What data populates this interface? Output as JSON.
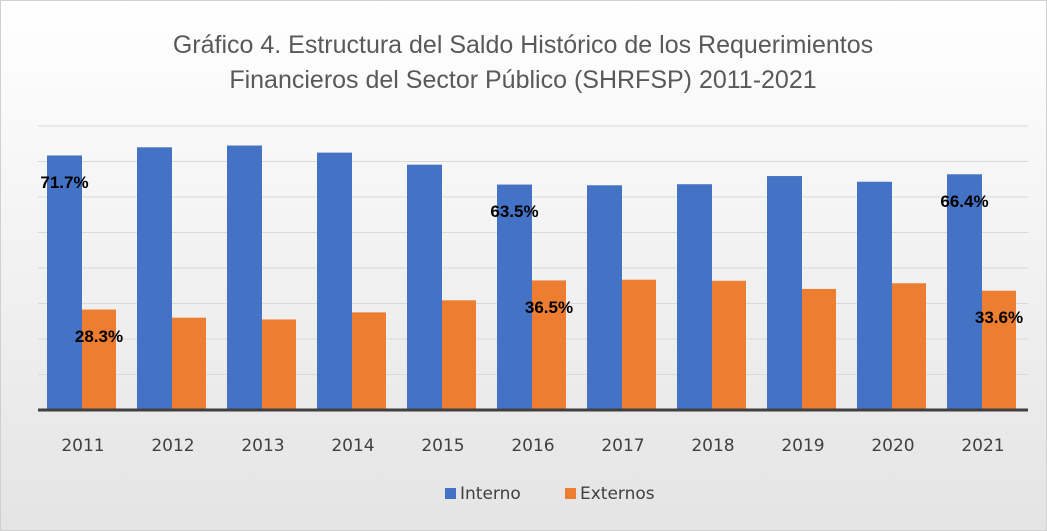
{
  "chart_data": {
    "type": "bar",
    "title": "Gráfico 4. Estructura del Saldo Histórico de los Requerimientos Financieros del Sector Público (SHRFSP) 2011-2021",
    "categories": [
      "2011",
      "2012",
      "2013",
      "2014",
      "2015",
      "2016",
      "2017",
      "2018",
      "2019",
      "2020",
      "2021"
    ],
    "series": [
      {
        "name": "Interno",
        "color": "#4472c4",
        "values": [
          71.7,
          74.0,
          74.5,
          72.5,
          69.1,
          63.5,
          63.3,
          63.6,
          65.9,
          64.3,
          66.4
        ],
        "value_labels": [
          "71.7%",
          null,
          null,
          null,
          null,
          "63.5%",
          null,
          null,
          null,
          null,
          "66.4%"
        ]
      },
      {
        "name": "Externos",
        "color": "#ed7d31",
        "values": [
          28.3,
          26.0,
          25.5,
          27.5,
          30.9,
          36.5,
          36.7,
          36.4,
          34.1,
          35.7,
          33.6
        ],
        "value_labels": [
          "28.3%",
          null,
          null,
          null,
          null,
          "36.5%",
          null,
          null,
          null,
          null,
          "33.6%"
        ]
      }
    ],
    "ylim": [
      0,
      80
    ],
    "yticks": [
      0,
      10,
      20,
      30,
      40,
      50,
      60,
      70,
      80
    ],
    "grid": true,
    "legend": "bottom"
  }
}
